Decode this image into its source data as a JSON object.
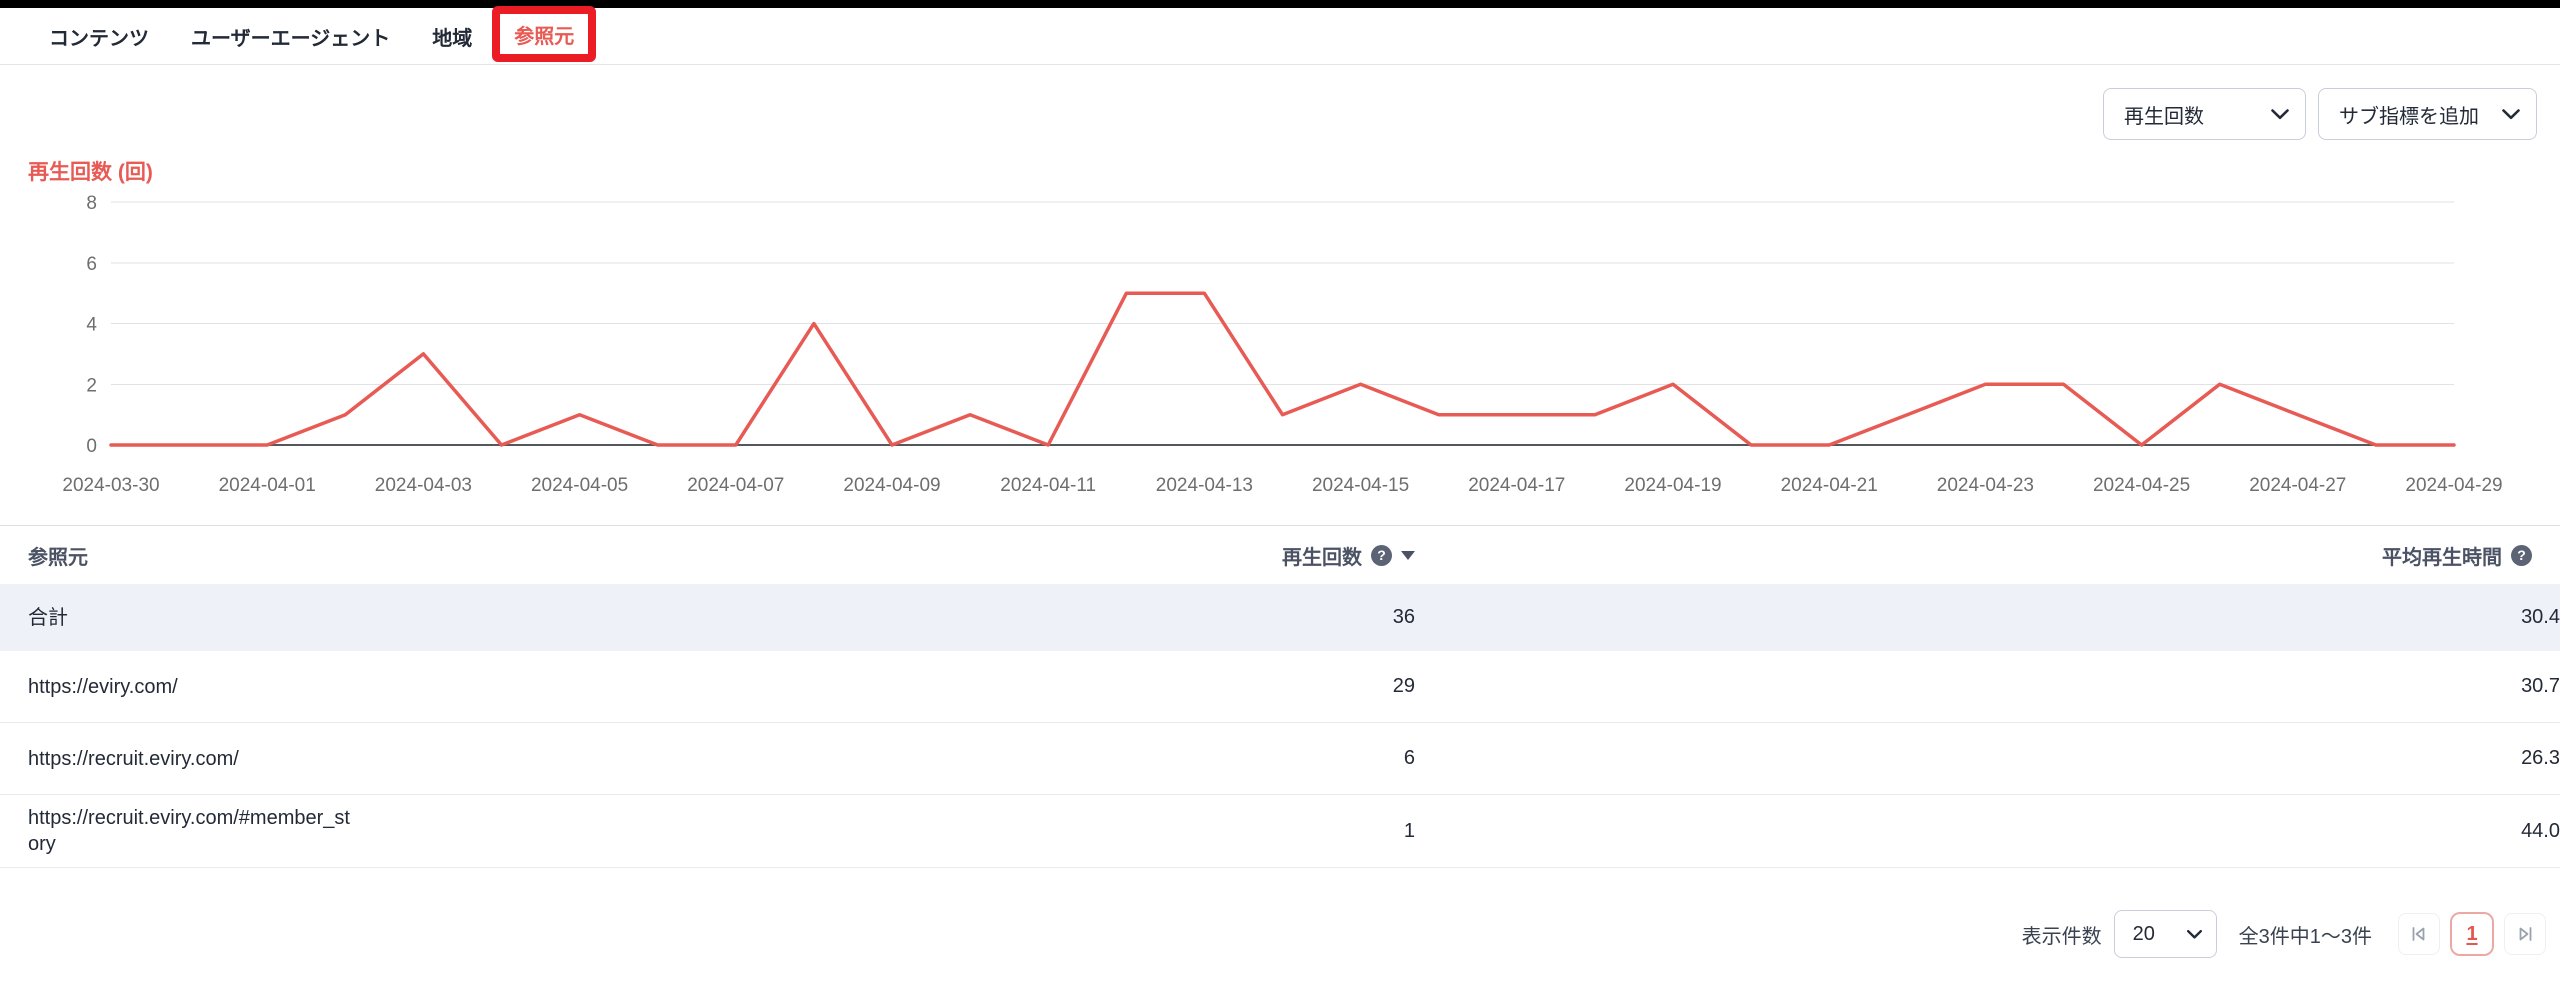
{
  "tabs": [
    {
      "label": "コンテンツ",
      "active": false
    },
    {
      "label": "ユーザーエージェント",
      "active": false
    },
    {
      "label": "地域",
      "active": false
    },
    {
      "label": "参照元",
      "active": true
    }
  ],
  "toolbar": {
    "metric_select": "再生回数",
    "submetric_select": "サブ指標を追加"
  },
  "chart_data": {
    "type": "line",
    "title": "再生回数 (回)",
    "x": [
      "2024-03-30",
      "2024-03-31",
      "2024-04-01",
      "2024-04-02",
      "2024-04-03",
      "2024-04-04",
      "2024-04-05",
      "2024-04-06",
      "2024-04-07",
      "2024-04-08",
      "2024-04-09",
      "2024-04-10",
      "2024-04-11",
      "2024-04-12",
      "2024-04-13",
      "2024-04-14",
      "2024-04-15",
      "2024-04-16",
      "2024-04-17",
      "2024-04-18",
      "2024-04-19",
      "2024-04-20",
      "2024-04-21",
      "2024-04-22",
      "2024-04-23",
      "2024-04-24",
      "2024-04-25",
      "2024-04-26",
      "2024-04-27",
      "2024-04-28",
      "2024-04-29"
    ],
    "x_tick_labels": [
      "2024-03-30",
      "2024-04-01",
      "2024-04-03",
      "2024-04-05",
      "2024-04-07",
      "2024-04-09",
      "2024-04-11",
      "2024-04-13",
      "2024-04-15",
      "2024-04-17",
      "2024-04-19",
      "2024-04-21",
      "2024-04-23",
      "2024-04-25",
      "2024-04-27",
      "2024-04-29"
    ],
    "series": [
      {
        "name": "再生回数",
        "color": "#e85a54",
        "values": [
          0,
          0,
          0,
          1,
          3,
          0,
          1,
          0,
          0,
          4,
          0,
          1,
          0,
          5,
          5,
          1,
          2,
          1,
          1,
          1,
          2,
          0,
          0,
          1,
          2,
          2,
          0,
          2,
          1,
          0,
          0
        ]
      }
    ],
    "ylim": [
      0,
      8
    ],
    "yticks": [
      0,
      2,
      4,
      6,
      8
    ],
    "grid": true,
    "legend": false
  },
  "table": {
    "columns": [
      {
        "label": "参照元",
        "align": "left",
        "help": false,
        "sorted": null
      },
      {
        "label": "再生回数",
        "align": "right",
        "help": true,
        "sorted": "desc"
      },
      {
        "label": "平均再生時間",
        "align": "right",
        "help": true,
        "sorted": null
      }
    ],
    "rows": [
      {
        "cells": [
          "合計",
          "36",
          "30.4"
        ],
        "total": true
      },
      {
        "cells": [
          "https://eviry.com/",
          "29",
          "30.7"
        ],
        "total": false
      },
      {
        "cells": [
          "https://recruit.eviry.com/",
          "6",
          "26.3"
        ],
        "total": false
      },
      {
        "cells": [
          "https://recruit.eviry.com/#member_story",
          "1",
          "44.0"
        ],
        "total": false
      }
    ]
  },
  "pagination": {
    "page_size_label": "表示件数",
    "page_size": "20",
    "range_text": "全3件中1〜3件",
    "current_page": "1"
  },
  "icons": {
    "help": "?"
  },
  "colors": {
    "accent": "#e85a54",
    "annotation_box": "#ec1c24",
    "total_row_bg": "#eef1f7",
    "grid_line": "#e2e2e5",
    "zero_line": "#54575c",
    "axis_text": "#6e6e6e"
  }
}
